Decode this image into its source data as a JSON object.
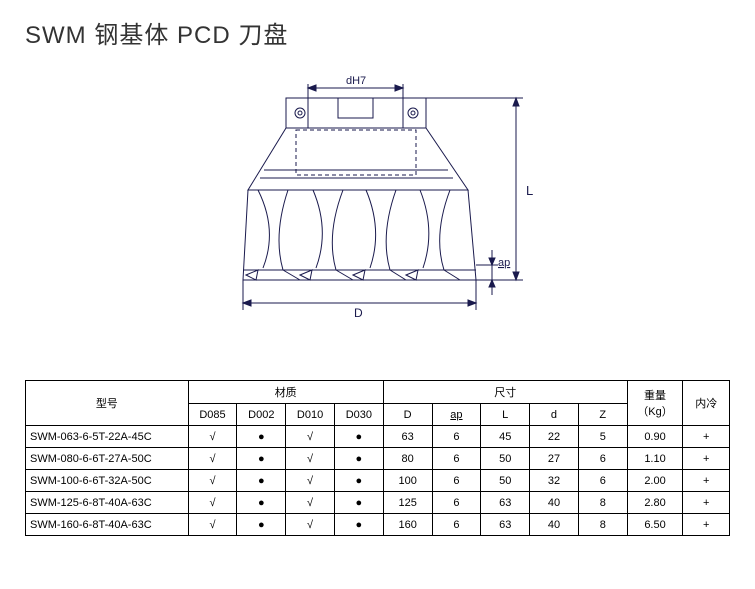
{
  "title": "SWM  钢基体 PCD 刀盘",
  "diagram": {
    "labels": {
      "top": "dH7",
      "right_L": "L",
      "right_ap": "ap",
      "bottom": "D"
    },
    "stroke_color": "#1a1a4d",
    "stroke_width": 1
  },
  "table": {
    "headers": {
      "model": "型号",
      "material": "材质",
      "dimensions": "尺寸",
      "weight": "重量",
      "weight_unit": "（Kg）",
      "cooling": "内冷",
      "mat_cols": [
        "D085",
        "D002",
        "D010",
        "D030"
      ],
      "dim_cols": [
        "D",
        "ap",
        "L",
        "d",
        "Z"
      ]
    },
    "rows": [
      {
        "model": "SWM-063-6-5T-22A-45C",
        "mats": [
          "√",
          "●",
          "√",
          "●"
        ],
        "dims": [
          "63",
          "6",
          "45",
          "22",
          "5"
        ],
        "weight": "0.90",
        "cooling": "+"
      },
      {
        "model": "SWM-080-6-6T-27A-50C",
        "mats": [
          "√",
          "●",
          "√",
          "●"
        ],
        "dims": [
          "80",
          "6",
          "50",
          "27",
          "6"
        ],
        "weight": "1.10",
        "cooling": "+"
      },
      {
        "model": "SWM-100-6-6T-32A-50C",
        "mats": [
          "√",
          "●",
          "√",
          "●"
        ],
        "dims": [
          "100",
          "6",
          "50",
          "32",
          "6"
        ],
        "weight": "2.00",
        "cooling": "+"
      },
      {
        "model": "SWM-125-6-8T-40A-63C",
        "mats": [
          "√",
          "●",
          "√",
          "●"
        ],
        "dims": [
          "125",
          "6",
          "63",
          "40",
          "8"
        ],
        "weight": "2.80",
        "cooling": "+"
      },
      {
        "model": "SWM-160-6-8T-40A-63C",
        "mats": [
          "√",
          "●",
          "√",
          "●"
        ],
        "dims": [
          "160",
          "6",
          "63",
          "40",
          "8"
        ],
        "weight": "6.50",
        "cooling": "+"
      }
    ]
  }
}
